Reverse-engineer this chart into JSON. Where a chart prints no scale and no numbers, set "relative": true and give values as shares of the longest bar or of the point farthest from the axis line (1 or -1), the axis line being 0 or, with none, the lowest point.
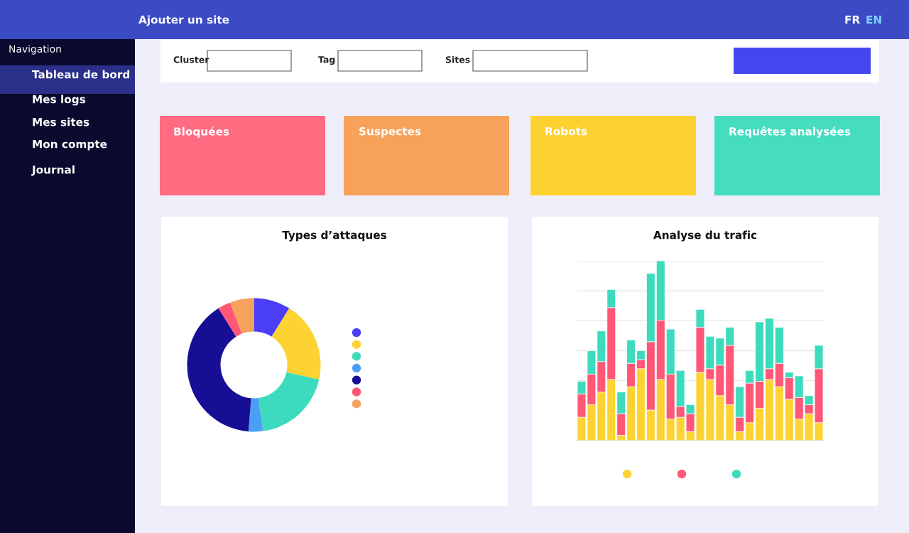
{
  "chart_data": [
    {
      "type": "other",
      "annotations": [
        "Navigation",
        "Tableau de bord",
        "Mes logs",
        "Mes sites",
        "Mon compte",
        "Journal",
        "Ajouter un site",
        "FR",
        "EN",
        "Cluster",
        "Tag",
        "Sites",
        "Bloquées",
        "Suspectes",
        "Robots",
        "Requêtes analysées"
      ]
    },
    {
      "type": "donut",
      "title": "Types d’attaques",
      "categories": [
        null,
        null,
        null,
        null,
        null,
        null,
        null
      ],
      "values": [
        8.9,
        19.6,
        19.3,
        3.5,
        39.8,
        3.1,
        5.8
      ],
      "colors": [
        "#4a3ff5",
        "#fdd334",
        "#3ddbbd",
        "#4a9ff5",
        "#160f96",
        "#ff5775",
        "#f5a35c"
      ]
    },
    {
      "type": "bar",
      "title": "Analyse du trafic",
      "relative": true,
      "stacked": true,
      "grid": "y",
      "categories": [
        null,
        null,
        null,
        null,
        null,
        null,
        null,
        null,
        null,
        null,
        null,
        null,
        null,
        null,
        null,
        null,
        null,
        null,
        null,
        null,
        null,
        null,
        null,
        null,
        null
      ],
      "series": [
        {
          "color": "#fdd334",
          "values": [
            0.13,
            0.2,
            0.27,
            0.34,
            0.03,
            0.3,
            0.4,
            0.17,
            0.34,
            0.12,
            0.13,
            0.05,
            0.38,
            0.34,
            0.25,
            0.2,
            0.05,
            0.1,
            0.18,
            0.34,
            0.3,
            0.23,
            0.12,
            0.15,
            0.1
          ]
        },
        {
          "color": "#ff5775",
          "values": [
            0.13,
            0.17,
            0.17,
            0.4,
            0.12,
            0.13,
            0.05,
            0.38,
            0.33,
            0.25,
            0.06,
            0.1,
            0.25,
            0.06,
            0.17,
            0.33,
            0.08,
            0.22,
            0.15,
            0.06,
            0.13,
            0.12,
            0.12,
            0.05,
            0.3
          ]
        },
        {
          "color": "#3ddbbd",
          "values": [
            0.07,
            0.13,
            0.17,
            0.1,
            0.12,
            0.13,
            0.05,
            0.38,
            0.33,
            0.25,
            0.2,
            0.05,
            0.1,
            0.18,
            0.15,
            0.1,
            0.17,
            0.07,
            0.33,
            0.28,
            0.2,
            0.03,
            0.12,
            0.05,
            0.13
          ]
        }
      ]
    }
  ]
}
